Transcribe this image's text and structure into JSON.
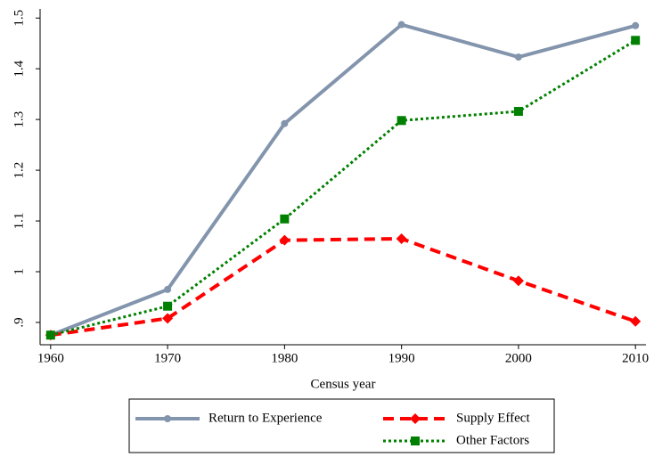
{
  "chart_data": {
    "type": "line",
    "xlabel": "Census year",
    "x": [
      1960,
      1970,
      1980,
      1990,
      2000,
      2010
    ],
    "xlim": [
      1959.1,
      2010.9
    ],
    "xticks": [
      1960,
      1970,
      1980,
      1990,
      2000,
      2010
    ],
    "ylim": [
      0.856,
      1.518
    ],
    "yticks": [
      {
        "value": 0.9,
        "label": ".9"
      },
      1,
      1.1,
      1.2,
      1.3,
      1.4,
      1.5
    ],
    "series": [
      {
        "name": "Return to Experience",
        "color": "#8394ad",
        "style": "solid",
        "marker": "circle",
        "values": [
          0.875,
          0.965,
          1.292,
          1.487,
          1.423,
          1.485
        ]
      },
      {
        "name": "Supply Effect",
        "color": "#ff0000",
        "style": "dashed",
        "marker": "diamond",
        "values": [
          0.875,
          0.908,
          1.062,
          1.065,
          0.982,
          0.902
        ]
      },
      {
        "name": "Other Factors",
        "color": "#008000",
        "style": "dotted",
        "marker": "square",
        "values": [
          0.875,
          0.932,
          1.104,
          1.298,
          1.316,
          1.456
        ]
      }
    ]
  }
}
